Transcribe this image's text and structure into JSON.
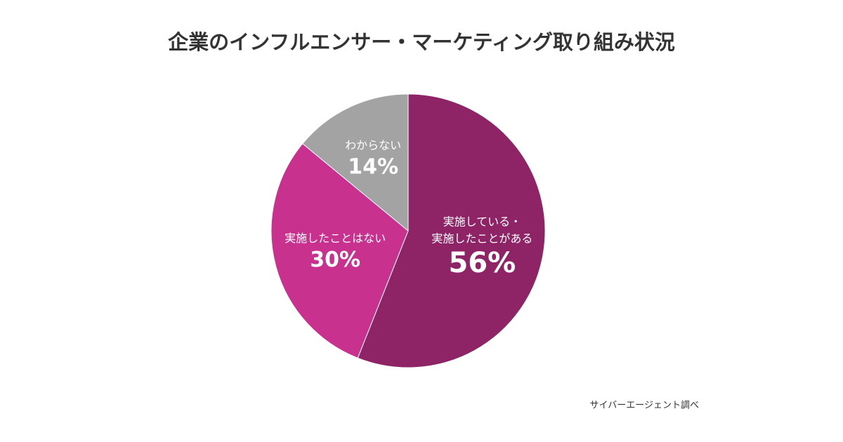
{
  "chart_data": {
    "type": "pie",
    "title": "企業のインフルエンサー・マーケティング取り組み状況",
    "categories": [
      [
        "実施している・",
        "実施したことがある"
      ],
      [
        "実施したことはない"
      ],
      [
        "わからない"
      ]
    ],
    "values": [
      56,
      30,
      14
    ],
    "value_labels": [
      "56%",
      "30%",
      "14%"
    ],
    "colors": [
      "#8e2466",
      "#c9318f",
      "#a3a3a3"
    ],
    "source": "サイバーエージェント調べ"
  }
}
